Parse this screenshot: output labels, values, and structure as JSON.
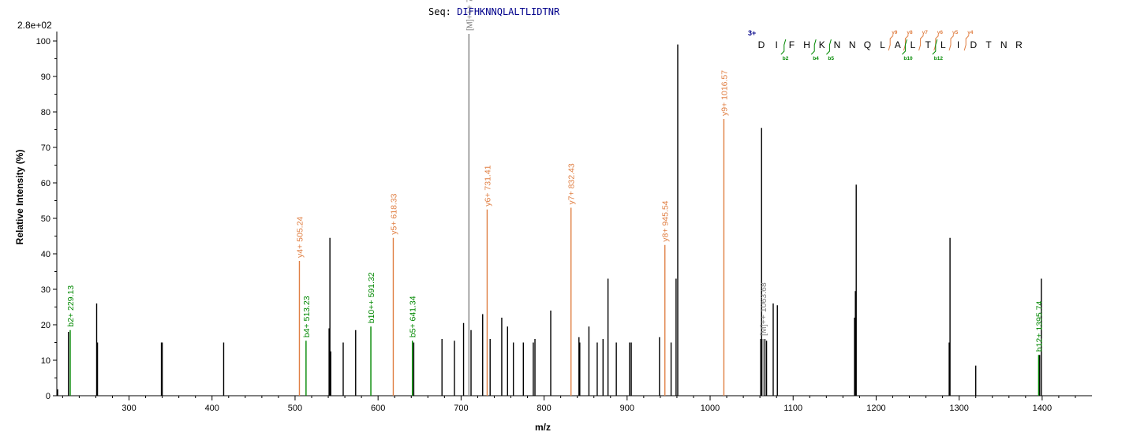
{
  "title": {
    "prefix": "Seq:",
    "sequence": "DIFHKNNQLALTLIDTNR"
  },
  "scale_label": "2.8e+02",
  "charge_label": "3+",
  "colors": {
    "y": "#e07f43",
    "b": "#008800",
    "M": "#808080",
    "unassigned": "#000000",
    "sequence": "#00008b"
  },
  "chart_data": {
    "type": "bar",
    "xlabel": "m/z",
    "ylabel": "Relative   Intensity (%)",
    "xlim": [
      213,
      1460
    ],
    "ylim": [
      0,
      102
    ],
    "x_ticks": [
      300,
      400,
      500,
      600,
      700,
      800,
      900,
      1000,
      1100,
      1200,
      1300,
      1400
    ],
    "y_ticks": [
      0,
      10,
      20,
      30,
      40,
      50,
      60,
      70,
      80,
      90,
      100
    ],
    "annotated_peaks": [
      {
        "mz": 229.13,
        "intensity": 18.5,
        "type": "b",
        "label": "b2+ 229.13"
      },
      {
        "mz": 505.24,
        "intensity": 38,
        "type": "y",
        "label": "y4+ 505.24"
      },
      {
        "mz": 513.23,
        "intensity": 15.5,
        "type": "b",
        "label": "b4+ 513.23"
      },
      {
        "mz": 591.32,
        "intensity": 19.5,
        "type": "b",
        "label": "b10++ 591.32"
      },
      {
        "mz": 618.33,
        "intensity": 44.5,
        "type": "y",
        "label": "y5+ 618.33"
      },
      {
        "mz": 641.34,
        "intensity": 15.5,
        "type": "b",
        "label": "b5+ 641.34"
      },
      {
        "mz": 709.45,
        "intensity": 102,
        "type": "M",
        "label": "[M]+++ 709.45"
      },
      {
        "mz": 731.41,
        "intensity": 52.5,
        "type": "y",
        "label": "y6+ 731.41"
      },
      {
        "mz": 832.43,
        "intensity": 53,
        "type": "y",
        "label": "y7+ 832.43"
      },
      {
        "mz": 945.54,
        "intensity": 42.5,
        "type": "y",
        "label": "y8+ 945.54"
      },
      {
        "mz": 1016.57,
        "intensity": 78,
        "type": "y",
        "label": "y9+ 1016.57"
      },
      {
        "mz": 1063.68,
        "intensity": 16,
        "type": "M",
        "label": "[M]++ 1063.68"
      },
      {
        "mz": 1395.74,
        "intensity": 11.5,
        "type": "b",
        "label": "b12+ 1395.74"
      }
    ],
    "unassigned_peaks": [
      {
        "mz": 214,
        "intensity": 1.8
      },
      {
        "mz": 227,
        "intensity": 18
      },
      {
        "mz": 261,
        "intensity": 26
      },
      {
        "mz": 262,
        "intensity": 15
      },
      {
        "mz": 339,
        "intensity": 15
      },
      {
        "mz": 340,
        "intensity": 15
      },
      {
        "mz": 414,
        "intensity": 15
      },
      {
        "mz": 541,
        "intensity": 19
      },
      {
        "mz": 542,
        "intensity": 44.5
      },
      {
        "mz": 543,
        "intensity": 12.5
      },
      {
        "mz": 558,
        "intensity": 15
      },
      {
        "mz": 573,
        "intensity": 18.5
      },
      {
        "mz": 643,
        "intensity": 15
      },
      {
        "mz": 677,
        "intensity": 16
      },
      {
        "mz": 692,
        "intensity": 15.5
      },
      {
        "mz": 703,
        "intensity": 20.5
      },
      {
        "mz": 712,
        "intensity": 18.5
      },
      {
        "mz": 726,
        "intensity": 23
      },
      {
        "mz": 735,
        "intensity": 16
      },
      {
        "mz": 749,
        "intensity": 22
      },
      {
        "mz": 756,
        "intensity": 19.5
      },
      {
        "mz": 763,
        "intensity": 15
      },
      {
        "mz": 775,
        "intensity": 15
      },
      {
        "mz": 787,
        "intensity": 15
      },
      {
        "mz": 789,
        "intensity": 16
      },
      {
        "mz": 808,
        "intensity": 24
      },
      {
        "mz": 842,
        "intensity": 16.5
      },
      {
        "mz": 843,
        "intensity": 15
      },
      {
        "mz": 854,
        "intensity": 19.5
      },
      {
        "mz": 864,
        "intensity": 15
      },
      {
        "mz": 871,
        "intensity": 16
      },
      {
        "mz": 877,
        "intensity": 33
      },
      {
        "mz": 887,
        "intensity": 15
      },
      {
        "mz": 903,
        "intensity": 15
      },
      {
        "mz": 905,
        "intensity": 15
      },
      {
        "mz": 939,
        "intensity": 16.5
      },
      {
        "mz": 953,
        "intensity": 15
      },
      {
        "mz": 959,
        "intensity": 33
      },
      {
        "mz": 961,
        "intensity": 99
      },
      {
        "mz": 1061,
        "intensity": 16
      },
      {
        "mz": 1062,
        "intensity": 75.5
      },
      {
        "mz": 1066,
        "intensity": 16
      },
      {
        "mz": 1068,
        "intensity": 15.5
      },
      {
        "mz": 1076,
        "intensity": 26
      },
      {
        "mz": 1081,
        "intensity": 25.5
      },
      {
        "mz": 1174,
        "intensity": 22
      },
      {
        "mz": 1175,
        "intensity": 29.5
      },
      {
        "mz": 1176,
        "intensity": 59.5
      },
      {
        "mz": 1288,
        "intensity": 15
      },
      {
        "mz": 1289,
        "intensity": 44.5
      },
      {
        "mz": 1320,
        "intensity": 8.5
      },
      {
        "mz": 1397,
        "intensity": 11.5
      },
      {
        "mz": 1399,
        "intensity": 33
      }
    ]
  },
  "fragment_map": {
    "letters": [
      "D",
      "I",
      "F",
      "H",
      "K",
      "N",
      "N",
      "Q",
      "L",
      "A",
      "L",
      "T",
      "L",
      "I",
      "D",
      "T",
      "N",
      "R"
    ],
    "y_labels": [
      {
        "after": 9,
        "label": "y9"
      },
      {
        "after": 10,
        "label": "y8"
      },
      {
        "after": 11,
        "label": "y7"
      },
      {
        "after": 12,
        "label": "y6"
      },
      {
        "after": 13,
        "label": "y5"
      },
      {
        "after": 14,
        "label": "y4"
      }
    ],
    "b_labels": [
      {
        "after": 2,
        "label": "b2"
      },
      {
        "after": 4,
        "label": "b4"
      },
      {
        "after": 5,
        "label": "b5"
      },
      {
        "after": 10,
        "label": "b10"
      },
      {
        "after": 12,
        "label": "b12"
      }
    ]
  }
}
